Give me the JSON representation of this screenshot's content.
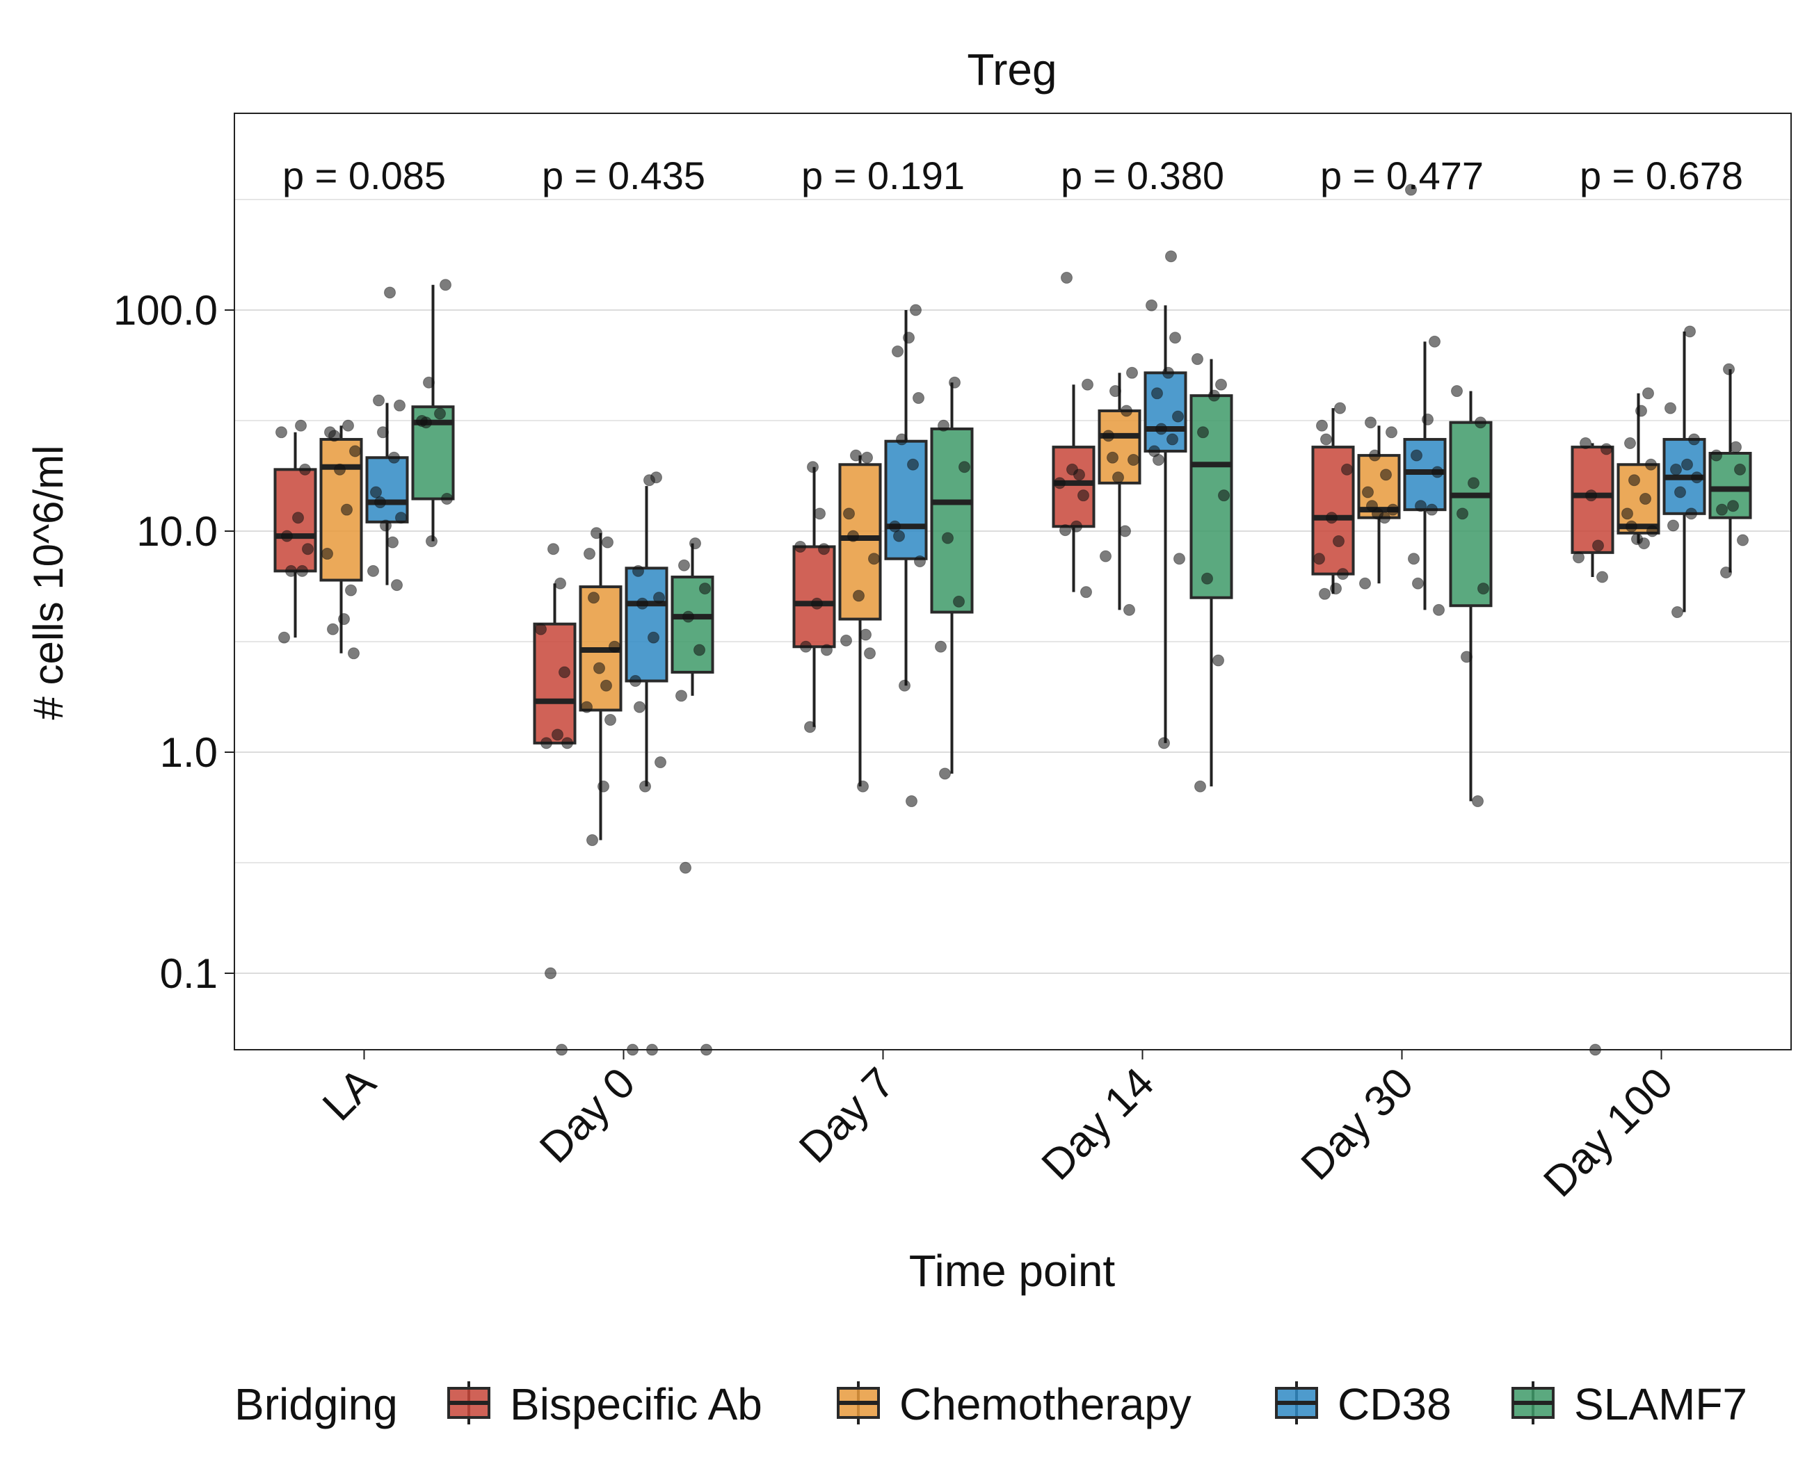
{
  "chart_data": {
    "type": "boxplot",
    "title": "Treg",
    "xlabel": "Time point",
    "ylabel": "# cells 10^6/ml",
    "y_scale": "log10",
    "ylim": [
      0.045,
      800
    ],
    "y_ticks": [
      {
        "value": 0.1,
        "label": "0.1"
      },
      {
        "value": 1,
        "label": "1.0"
      },
      {
        "value": 10,
        "label": "10.0"
      },
      {
        "value": 100,
        "label": "100.0"
      }
    ],
    "y_minor_gridlines": [
      0.3162,
      3.162,
      31.62,
      316.2
    ],
    "grid": true,
    "categories": [
      "LA",
      "Day 0",
      "Day 7",
      "Day 14",
      "Day 30",
      "Day 100"
    ],
    "p_values": [
      "p = 0.085",
      "p = 0.435",
      "p = 0.191",
      "p = 0.380",
      "p = 0.477",
      "p = 0.678"
    ],
    "legend": {
      "title": "Bridging",
      "position": "bottom",
      "entries": [
        "Bispecific Ab",
        "Chemotherapy",
        "CD38",
        "SLAMF7"
      ]
    },
    "series": [
      {
        "name": "Bispecific Ab",
        "color": "#c8473a",
        "boxes": [
          {
            "min": 3.3,
            "q1": 6.6,
            "median": 9.5,
            "q3": 19,
            "max": 28
          },
          {
            "min": 1.1,
            "q1": 1.1,
            "median": 1.7,
            "q3": 3.8,
            "max": 5.8
          },
          {
            "min": 1.3,
            "q1": 3.0,
            "median": 4.7,
            "q3": 8.5,
            "max": 19.5
          },
          {
            "min": 5.3,
            "q1": 10.5,
            "median": 16.5,
            "q3": 24,
            "max": 46
          },
          {
            "min": 5.2,
            "q1": 6.4,
            "median": 11.5,
            "q3": 24,
            "max": 36
          },
          {
            "min": 6.2,
            "q1": 8.0,
            "median": 14.5,
            "q3": 24,
            "max": 25
          }
        ],
        "points": [
          [
            3.3,
            6.6,
            6.6,
            8.3,
            9.5,
            11.5,
            19,
            28,
            30
          ],
          [
            0.045,
            0.1,
            1.1,
            1.1,
            1.2,
            2.3,
            3.6,
            5.8,
            8.3
          ],
          [
            1.3,
            2.9,
            3.0,
            4.7,
            8.3,
            8.5,
            12,
            19.5
          ],
          [
            5.3,
            10.1,
            10.5,
            14.5,
            16.5,
            18,
            19,
            46,
            140
          ],
          [
            5.2,
            5.5,
            6.4,
            7.5,
            9.0,
            11.5,
            19,
            26,
            30,
            36
          ],
          [
            0.045,
            6.2,
            7.6,
            8.6,
            14.5,
            23.5,
            25
          ]
        ]
      },
      {
        "name": "Chemotherapy",
        "color": "#e89a3c",
        "boxes": [
          {
            "min": 2.8,
            "q1": 6.0,
            "median": 19.5,
            "q3": 26,
            "max": 30
          },
          {
            "min": 0.4,
            "q1": 1.55,
            "median": 2.9,
            "q3": 5.6,
            "max": 9.8
          },
          {
            "min": 0.7,
            "q1": 4.0,
            "median": 9.3,
            "q3": 20,
            "max": 22
          },
          {
            "min": 4.4,
            "q1": 16.5,
            "median": 27,
            "q3": 35,
            "max": 52
          },
          {
            "min": 5.8,
            "q1": 11.5,
            "median": 12.5,
            "q3": 22,
            "max": 30
          },
          {
            "min": 8.8,
            "q1": 9.8,
            "median": 10.5,
            "q3": 20,
            "max": 42
          }
        ],
        "points": [
          [
            2.8,
            3.6,
            4.0,
            5.4,
            7.9,
            12.5,
            19,
            23,
            27,
            28,
            30
          ],
          [
            0.4,
            0.7,
            1.4,
            1.6,
            2.0,
            2.4,
            3.0,
            5.0,
            7.9,
            8.9,
            9.8
          ],
          [
            0.7,
            2.8,
            3.2,
            3.4,
            5.1,
            7.5,
            9.5,
            12,
            21.5,
            22
          ],
          [
            4.4,
            7.7,
            10,
            17.5,
            21,
            21.5,
            27,
            35,
            43,
            52
          ],
          [
            5.8,
            11.5,
            12,
            12.5,
            13,
            15,
            18,
            22,
            28,
            31
          ],
          [
            8.8,
            9.2,
            10,
            10.5,
            12,
            14,
            17,
            20,
            25,
            35,
            42
          ]
        ]
      },
      {
        "name": "CD38",
        "color": "#2f8ac4",
        "boxes": [
          {
            "min": 5.7,
            "q1": 11,
            "median": 13.5,
            "q3": 21.5,
            "max": 38
          },
          {
            "min": 0.7,
            "q1": 2.1,
            "median": 4.7,
            "q3": 6.8,
            "max": 16
          },
          {
            "min": 2.0,
            "q1": 7.5,
            "median": 10.5,
            "q3": 25.5,
            "max": 100
          },
          {
            "min": 1.1,
            "q1": 23,
            "median": 29,
            "q3": 52,
            "max": 105
          },
          {
            "min": 4.4,
            "q1": 12.5,
            "median": 18.5,
            "q3": 26,
            "max": 72
          },
          {
            "min": 4.3,
            "q1": 12,
            "median": 17.5,
            "q3": 26,
            "max": 80
          }
        ],
        "points": [
          [
            5.7,
            6.6,
            8.9,
            10.6,
            11.5,
            13.5,
            15,
            21.5,
            28,
            37,
            39,
            120
          ],
          [
            0.045,
            0.045,
            0.7,
            0.9,
            1.6,
            2.1,
            3.3,
            4.7,
            5.0,
            6.6,
            17,
            17.5
          ],
          [
            0.6,
            2.0,
            7.3,
            9.5,
            10.5,
            20,
            26,
            40,
            65,
            75,
            100
          ],
          [
            1.1,
            7.5,
            21,
            23,
            26,
            29,
            33,
            42,
            52,
            75,
            105,
            175
          ],
          [
            4.4,
            5.8,
            7.5,
            12.5,
            13,
            18.5,
            22,
            32,
            72,
            350
          ],
          [
            4.3,
            10.6,
            12,
            15,
            17.5,
            19,
            20,
            26,
            36,
            80
          ]
        ]
      },
      {
        "name": "SLAMF7",
        "color": "#3e9a68",
        "boxes": [
          {
            "min": 9.0,
            "q1": 14,
            "median": 31,
            "q3": 36.5,
            "max": 130
          },
          {
            "min": 1.8,
            "q1": 2.3,
            "median": 4.1,
            "q3": 6.2,
            "max": 8.8
          },
          {
            "min": 0.8,
            "q1": 4.3,
            "median": 13.5,
            "q3": 29,
            "max": 47
          },
          {
            "min": 0.7,
            "q1": 5.0,
            "median": 20,
            "q3": 41,
            "max": 60
          },
          {
            "min": 0.6,
            "q1": 4.6,
            "median": 14.5,
            "q3": 31,
            "max": 43
          },
          {
            "min": 6.5,
            "q1": 11.5,
            "median": 15.5,
            "q3": 22.5,
            "max": 54
          }
        ],
        "points": [
          [
            9.0,
            14,
            31,
            31.5,
            34,
            47,
            130
          ],
          [
            0.045,
            0.3,
            1.8,
            2.9,
            4.1,
            5.5,
            7.0,
            8.8
          ],
          [
            0.8,
            3.0,
            4.8,
            9.3,
            19.5,
            30,
            47
          ],
          [
            0.7,
            2.6,
            6.1,
            14.5,
            28,
            41,
            46,
            60
          ],
          [
            0.6,
            2.7,
            5.5,
            12,
            16.5,
            31,
            43
          ],
          [
            6.5,
            9.1,
            12.5,
            13,
            19,
            22,
            24,
            54
          ]
        ]
      }
    ]
  }
}
